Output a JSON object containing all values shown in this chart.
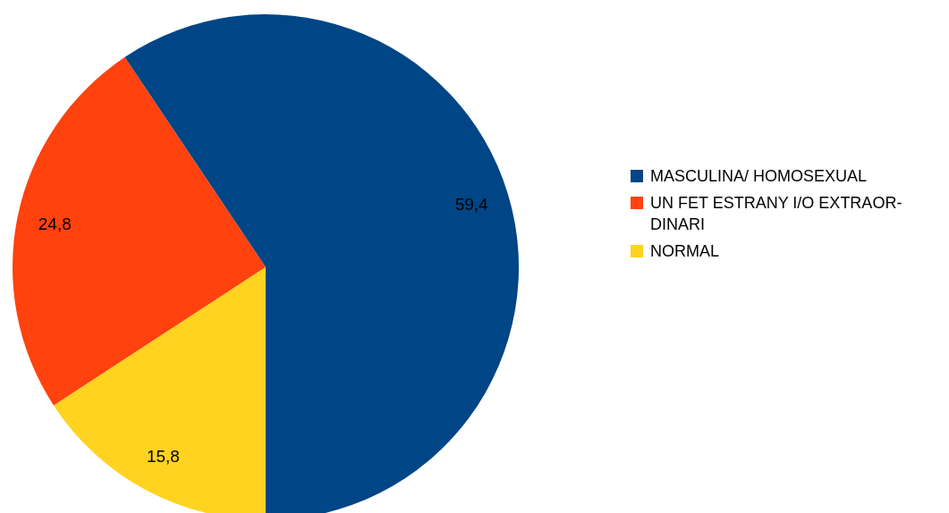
{
  "chart_data": {
    "type": "pie",
    "categories": [
      "MASCULINA/ HOMOSEXUAL",
      "UN FET ESTRANY I/O EXTRAOR-DINARI",
      "NORMAL"
    ],
    "values": [
      59.4,
      24.8,
      15.8
    ],
    "colors": [
      "#004586",
      "#ff420e",
      "#ffd320"
    ],
    "value_labels": [
      "59,4",
      "24,8",
      "15,8"
    ],
    "legend": "right"
  }
}
